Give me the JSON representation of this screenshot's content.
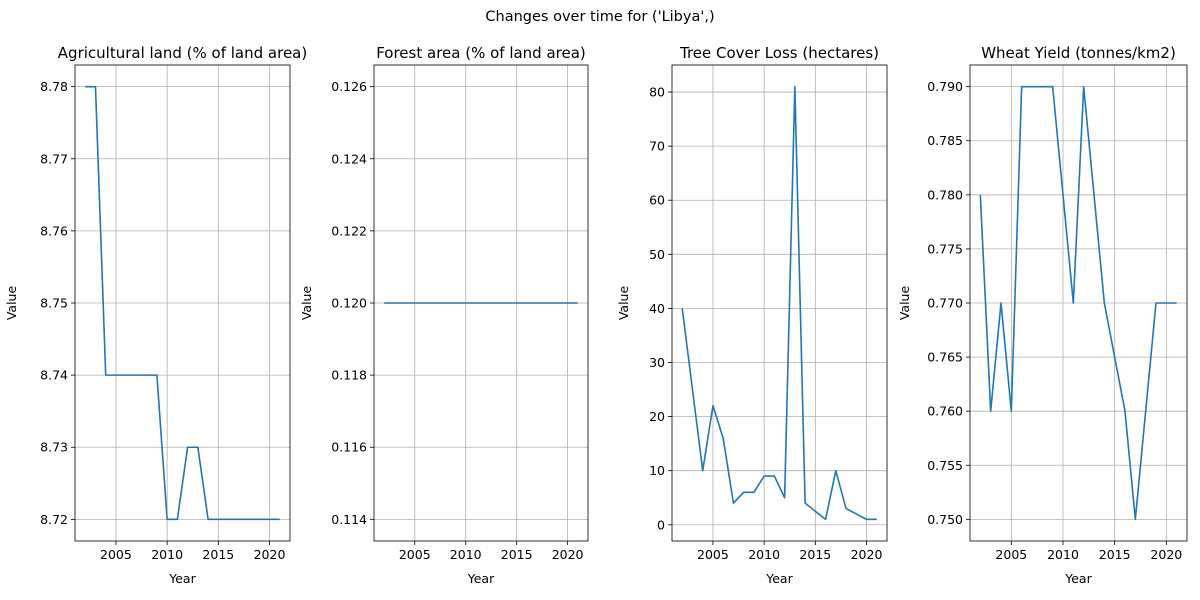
{
  "figure": {
    "title": "Changes over time for ('Libya',)"
  },
  "chart_data": [
    {
      "type": "line",
      "title": "Agricultural land (% of land area)",
      "xlabel": "Year",
      "ylabel": "Value",
      "grid": true,
      "color": "#1f77b4",
      "xlim": [
        2001,
        2022
      ],
      "ylim": [
        8.717,
        8.783
      ],
      "xticks": [
        2005,
        2010,
        2015,
        2020
      ],
      "yticks": [
        8.72,
        8.73,
        8.74,
        8.75,
        8.76,
        8.77,
        8.78
      ],
      "ytick_decimals": 2,
      "x": [
        2002,
        2003,
        2004,
        2005,
        2006,
        2007,
        2008,
        2009,
        2010,
        2011,
        2012,
        2013,
        2014,
        2015,
        2016,
        2017,
        2018,
        2019,
        2020,
        2021
      ],
      "y": [
        8.78,
        8.78,
        8.74,
        8.74,
        8.74,
        8.74,
        8.74,
        8.74,
        8.72,
        8.72,
        8.73,
        8.73,
        8.72,
        8.72,
        8.72,
        8.72,
        8.72,
        8.72,
        8.72,
        8.72
      ]
    },
    {
      "type": "line",
      "title": "Forest area (% of land area)",
      "xlabel": "Year",
      "ylabel": "Value",
      "grid": true,
      "color": "#1f77b4",
      "xlim": [
        2001,
        2022
      ],
      "ylim": [
        0.1134,
        0.1266
      ],
      "xticks": [
        2005,
        2010,
        2015,
        2020
      ],
      "yticks": [
        0.114,
        0.116,
        0.118,
        0.12,
        0.122,
        0.124,
        0.126
      ],
      "ytick_decimals": 3,
      "x": [
        2002,
        2003,
        2004,
        2005,
        2006,
        2007,
        2008,
        2009,
        2010,
        2011,
        2012,
        2013,
        2014,
        2015,
        2016,
        2017,
        2018,
        2019,
        2020,
        2021
      ],
      "y": [
        0.12,
        0.12,
        0.12,
        0.12,
        0.12,
        0.12,
        0.12,
        0.12,
        0.12,
        0.12,
        0.12,
        0.12,
        0.12,
        0.12,
        0.12,
        0.12,
        0.12,
        0.12,
        0.12,
        0.12
      ]
    },
    {
      "type": "line",
      "title": "Tree Cover Loss (hectares)",
      "xlabel": "Year",
      "ylabel": "Value",
      "grid": true,
      "color": "#1f77b4",
      "xlim": [
        2001,
        2022
      ],
      "ylim": [
        -3,
        85
      ],
      "xticks": [
        2005,
        2010,
        2015,
        2020
      ],
      "yticks": [
        0,
        10,
        20,
        30,
        40,
        50,
        60,
        70,
        80
      ],
      "ytick_decimals": 0,
      "x": [
        2002,
        2003,
        2004,
        2005,
        2006,
        2007,
        2008,
        2009,
        2010,
        2011,
        2012,
        2013,
        2014,
        2015,
        2016,
        2017,
        2018,
        2019,
        2020,
        2021
      ],
      "y": [
        40,
        25,
        10,
        22,
        16,
        4,
        6,
        6,
        9,
        9,
        5,
        81,
        4,
        2.5,
        1,
        10,
        3,
        2,
        1,
        1
      ]
    },
    {
      "type": "line",
      "title": "Wheat Yield (tonnes/km2)",
      "xlabel": "Year",
      "ylabel": "Value",
      "grid": true,
      "color": "#1f77b4",
      "xlim": [
        2001,
        2022
      ],
      "ylim": [
        0.748,
        0.792
      ],
      "xticks": [
        2005,
        2010,
        2015,
        2020
      ],
      "yticks": [
        0.75,
        0.755,
        0.76,
        0.765,
        0.77,
        0.775,
        0.78,
        0.785,
        0.79
      ],
      "ytick_decimals": 3,
      "x": [
        2002,
        2003,
        2004,
        2005,
        2006,
        2007,
        2008,
        2009,
        2010,
        2011,
        2012,
        2013,
        2014,
        2015,
        2016,
        2017,
        2018,
        2019,
        2020,
        2021
      ],
      "y": [
        0.78,
        0.76,
        0.77,
        0.76,
        0.79,
        0.79,
        0.79,
        0.79,
        0.78,
        0.77,
        0.79,
        0.78,
        0.77,
        0.765,
        0.76,
        0.75,
        0.76,
        0.77,
        0.77,
        0.77
      ]
    }
  ]
}
